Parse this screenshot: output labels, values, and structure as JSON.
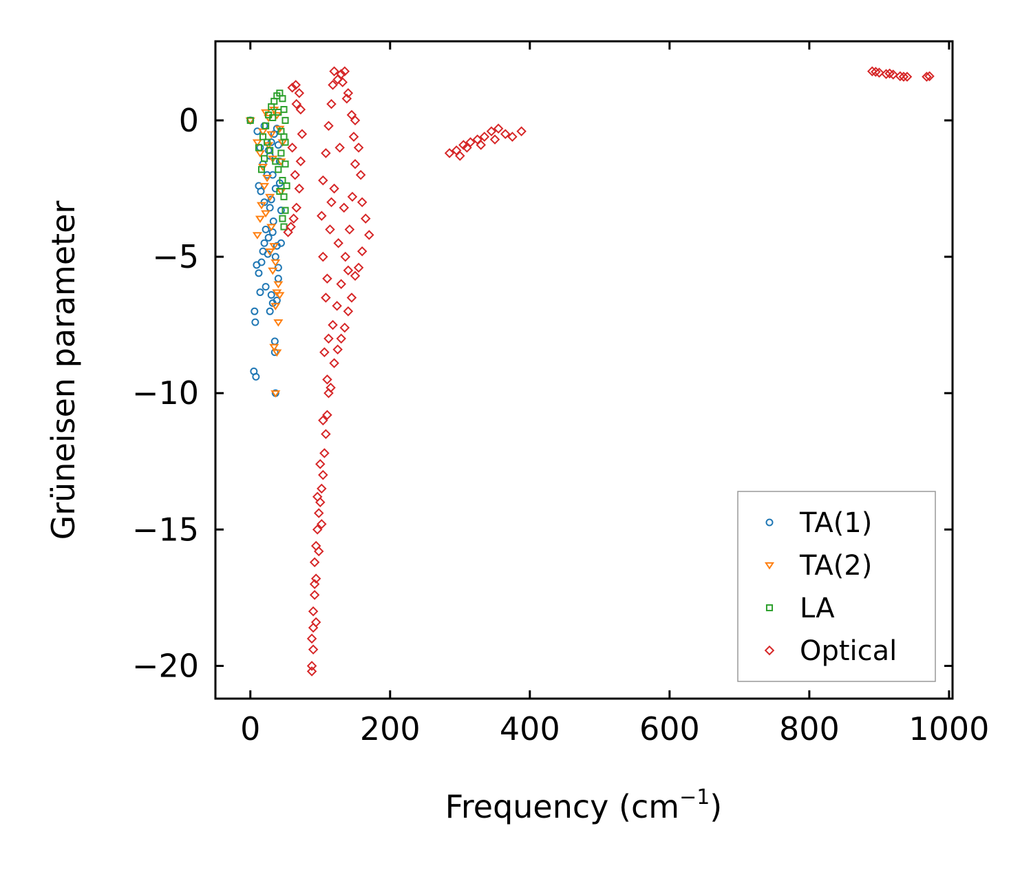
{
  "chart_data": {
    "type": "scatter",
    "title": "",
    "xlabel": "Frequency (cm",
    "xlabel_sup": "−1",
    "xlabel_close": ")",
    "ylabel": "Grüneisen parameter",
    "xlim": [
      -50,
      1005
    ],
    "ylim": [
      -21.2,
      2.9
    ],
    "xticks": [
      0,
      200,
      400,
      600,
      800,
      1000
    ],
    "yticks": [
      0,
      -5,
      -10,
      -15,
      -20
    ],
    "xtick_labels": [
      "0",
      "200",
      "400",
      "600",
      "800",
      "1000"
    ],
    "ytick_labels": [
      "0",
      "−5",
      "−10",
      "−15",
      "−20"
    ],
    "legend_position": "lower-right",
    "series": [
      {
        "name": "TA(1)",
        "marker": "circle",
        "color": "#1f77b4",
        "points": [
          [
            0,
            0
          ],
          [
            5,
            -9.2
          ],
          [
            8,
            -9.4
          ],
          [
            6,
            -7.0
          ],
          [
            7,
            -7.4
          ],
          [
            9,
            -5.3
          ],
          [
            12,
            -5.6
          ],
          [
            14,
            -6.3
          ],
          [
            16,
            -5.2
          ],
          [
            18,
            -4.8
          ],
          [
            20,
            -4.5
          ],
          [
            22,
            -6.1
          ],
          [
            25,
            -4.9
          ],
          [
            28,
            -7.0
          ],
          [
            30,
            -6.4
          ],
          [
            32,
            -6.7
          ],
          [
            35,
            -8.1
          ],
          [
            35,
            -8.5
          ],
          [
            36,
            -10.0
          ],
          [
            38,
            -6.6
          ],
          [
            40,
            -5.4
          ],
          [
            38,
            -4.6
          ],
          [
            33,
            -3.7
          ],
          [
            28,
            -3.2
          ],
          [
            20,
            -3.0
          ],
          [
            15,
            -2.6
          ],
          [
            12,
            -2.4
          ],
          [
            18,
            -1.6
          ],
          [
            24,
            -2.0
          ],
          [
            26,
            -1.1
          ],
          [
            30,
            -0.8
          ],
          [
            34,
            -0.5
          ],
          [
            38,
            -0.3
          ],
          [
            40,
            -0.9
          ],
          [
            42,
            -1.5
          ],
          [
            36,
            -2.5
          ],
          [
            30,
            -2.9
          ],
          [
            22,
            -4.0
          ],
          [
            26,
            -4.3
          ],
          [
            32,
            -4.1
          ],
          [
            36,
            -5.0
          ],
          [
            40,
            -5.8
          ],
          [
            44,
            -4.5
          ],
          [
            44,
            -3.3
          ],
          [
            42,
            -2.3
          ],
          [
            10,
            -0.4
          ],
          [
            14,
            -1.0
          ],
          [
            20,
            -0.2
          ],
          [
            28,
            -1.3
          ],
          [
            32,
            -2.0
          ]
        ]
      },
      {
        "name": "TA(2)",
        "marker": "triangle-down",
        "color": "#ff7f0e",
        "points": [
          [
            0,
            0
          ],
          [
            10,
            -0.8
          ],
          [
            14,
            -1.2
          ],
          [
            18,
            -1.7
          ],
          [
            22,
            0.3
          ],
          [
            26,
            0.1
          ],
          [
            30,
            -0.5
          ],
          [
            34,
            0.4
          ],
          [
            38,
            0.2
          ],
          [
            42,
            -0.3
          ],
          [
            24,
            -2.1
          ],
          [
            28,
            -2.8
          ],
          [
            20,
            -2.4
          ],
          [
            16,
            -3.1
          ],
          [
            10,
            -4.2
          ],
          [
            14,
            -3.6
          ],
          [
            30,
            -3.9
          ],
          [
            34,
            -4.6
          ],
          [
            36,
            -5.2
          ],
          [
            38,
            -6.3
          ],
          [
            40,
            -6.0
          ],
          [
            42,
            -6.4
          ],
          [
            36,
            -6.8
          ],
          [
            40,
            -7.4
          ],
          [
            34,
            -8.3
          ],
          [
            38,
            -8.5
          ],
          [
            36,
            -10.0
          ],
          [
            44,
            -2.6
          ],
          [
            44,
            -1.5
          ],
          [
            46,
            -0.8
          ],
          [
            32,
            -1.4
          ],
          [
            26,
            -0.9
          ],
          [
            18,
            -0.4
          ],
          [
            22,
            -3.4
          ],
          [
            28,
            -4.8
          ],
          [
            32,
            -5.5
          ]
        ]
      },
      {
        "name": "LA",
        "marker": "square",
        "color": "#2ca02c",
        "points": [
          [
            0,
            0
          ],
          [
            12,
            -1.0
          ],
          [
            18,
            -0.6
          ],
          [
            22,
            -0.2
          ],
          [
            26,
            0.2
          ],
          [
            30,
            0.5
          ],
          [
            34,
            0.7
          ],
          [
            38,
            0.9
          ],
          [
            42,
            1.0
          ],
          [
            46,
            0.8
          ],
          [
            48,
            0.4
          ],
          [
            50,
            0.0
          ],
          [
            48,
            -0.6
          ],
          [
            44,
            -1.2
          ],
          [
            40,
            -1.8
          ],
          [
            46,
            -2.2
          ],
          [
            48,
            -2.8
          ],
          [
            50,
            -3.3
          ],
          [
            46,
            -3.6
          ],
          [
            48,
            -3.9
          ],
          [
            42,
            -2.6
          ],
          [
            36,
            -1.5
          ],
          [
            28,
            -1.1
          ],
          [
            20,
            -1.4
          ],
          [
            16,
            -1.8
          ],
          [
            24,
            -0.8
          ],
          [
            32,
            0.1
          ],
          [
            40,
            0.3
          ],
          [
            44,
            -0.4
          ],
          [
            50,
            -1.6
          ],
          [
            52,
            -2.4
          ],
          [
            50,
            -0.8
          ]
        ]
      },
      {
        "name": "Optical",
        "marker": "diamond",
        "color": "#d62728",
        "points": [
          [
            60,
            1.2
          ],
          [
            65,
            1.3
          ],
          [
            70,
            1.0
          ],
          [
            72,
            0.4
          ],
          [
            74,
            -0.5
          ],
          [
            72,
            -1.5
          ],
          [
            70,
            -2.5
          ],
          [
            66,
            -3.2
          ],
          [
            62,
            -3.6
          ],
          [
            58,
            -3.9
          ],
          [
            54,
            -4.1
          ],
          [
            64,
            -2.0
          ],
          [
            60,
            -1.0
          ],
          [
            66,
            0.6
          ],
          [
            120,
            1.8
          ],
          [
            130,
            1.7
          ],
          [
            135,
            1.8
          ],
          [
            140,
            1.0
          ],
          [
            150,
            0.0
          ],
          [
            155,
            -1.0
          ],
          [
            158,
            -2.0
          ],
          [
            160,
            -3.0
          ],
          [
            165,
            -3.6
          ],
          [
            170,
            -4.2
          ],
          [
            160,
            -4.8
          ],
          [
            155,
            -5.4
          ],
          [
            150,
            -5.7
          ],
          [
            145,
            -6.5
          ],
          [
            140,
            -7.0
          ],
          [
            135,
            -7.6
          ],
          [
            130,
            -8.0
          ],
          [
            125,
            -8.4
          ],
          [
            120,
            -8.9
          ],
          [
            115,
            -9.8
          ],
          [
            110,
            -10.8
          ],
          [
            108,
            -11.5
          ],
          [
            106,
            -12.2
          ],
          [
            104,
            -13.0
          ],
          [
            102,
            -13.5
          ],
          [
            100,
            -14.0
          ],
          [
            98,
            -14.4
          ],
          [
            102,
            -14.8
          ],
          [
            96,
            -15.0
          ],
          [
            94,
            -15.6
          ],
          [
            92,
            -16.2
          ],
          [
            94,
            -16.8
          ],
          [
            92,
            -17.4
          ],
          [
            90,
            -18.0
          ],
          [
            90,
            -18.6
          ],
          [
            88,
            -19.0
          ],
          [
            90,
            -19.4
          ],
          [
            88,
            -20.0
          ],
          [
            88,
            -20.2
          ],
          [
            92,
            -17.0
          ],
          [
            96,
            -13.8
          ],
          [
            104,
            -11.0
          ],
          [
            110,
            -9.5
          ],
          [
            112,
            -8.0
          ],
          [
            108,
            -6.5
          ],
          [
            104,
            -5.0
          ],
          [
            102,
            -3.5
          ],
          [
            104,
            -2.2
          ],
          [
            108,
            -1.2
          ],
          [
            112,
            -0.2
          ],
          [
            116,
            0.6
          ],
          [
            118,
            1.3
          ],
          [
            125,
            1.5
          ],
          [
            132,
            1.4
          ],
          [
            138,
            0.8
          ],
          [
            145,
            0.2
          ],
          [
            148,
            -0.6
          ],
          [
            150,
            -1.6
          ],
          [
            146,
            -2.8
          ],
          [
            142,
            -4.0
          ],
          [
            136,
            -5.0
          ],
          [
            130,
            -6.0
          ],
          [
            124,
            -6.8
          ],
          [
            118,
            -7.5
          ],
          [
            114,
            -4.0
          ],
          [
            120,
            -2.5
          ],
          [
            128,
            -1.0
          ],
          [
            134,
            -3.2
          ],
          [
            140,
            -5.5
          ],
          [
            126,
            -4.5
          ],
          [
            116,
            -3.0
          ],
          [
            110,
            -5.8
          ],
          [
            106,
            -8.5
          ],
          [
            112,
            -10.0
          ],
          [
            100,
            -12.6
          ],
          [
            98,
            -15.8
          ],
          [
            94,
            -18.4
          ],
          [
            285,
            -1.2
          ],
          [
            295,
            -1.1
          ],
          [
            305,
            -0.9
          ],
          [
            315,
            -0.8
          ],
          [
            325,
            -0.7
          ],
          [
            335,
            -0.6
          ],
          [
            345,
            -0.4
          ],
          [
            355,
            -0.3
          ],
          [
            365,
            -0.5
          ],
          [
            375,
            -0.6
          ],
          [
            388,
            -0.4
          ],
          [
            300,
            -1.3
          ],
          [
            310,
            -1.0
          ],
          [
            330,
            -0.9
          ],
          [
            350,
            -0.7
          ],
          [
            890,
            1.8
          ],
          [
            900,
            1.75
          ],
          [
            910,
            1.7
          ],
          [
            920,
            1.68
          ],
          [
            930,
            1.62
          ],
          [
            940,
            1.6
          ],
          [
            895,
            1.78
          ],
          [
            915,
            1.72
          ],
          [
            935,
            1.6
          ],
          [
            968,
            1.6
          ],
          [
            972,
            1.62
          ]
        ]
      }
    ]
  }
}
